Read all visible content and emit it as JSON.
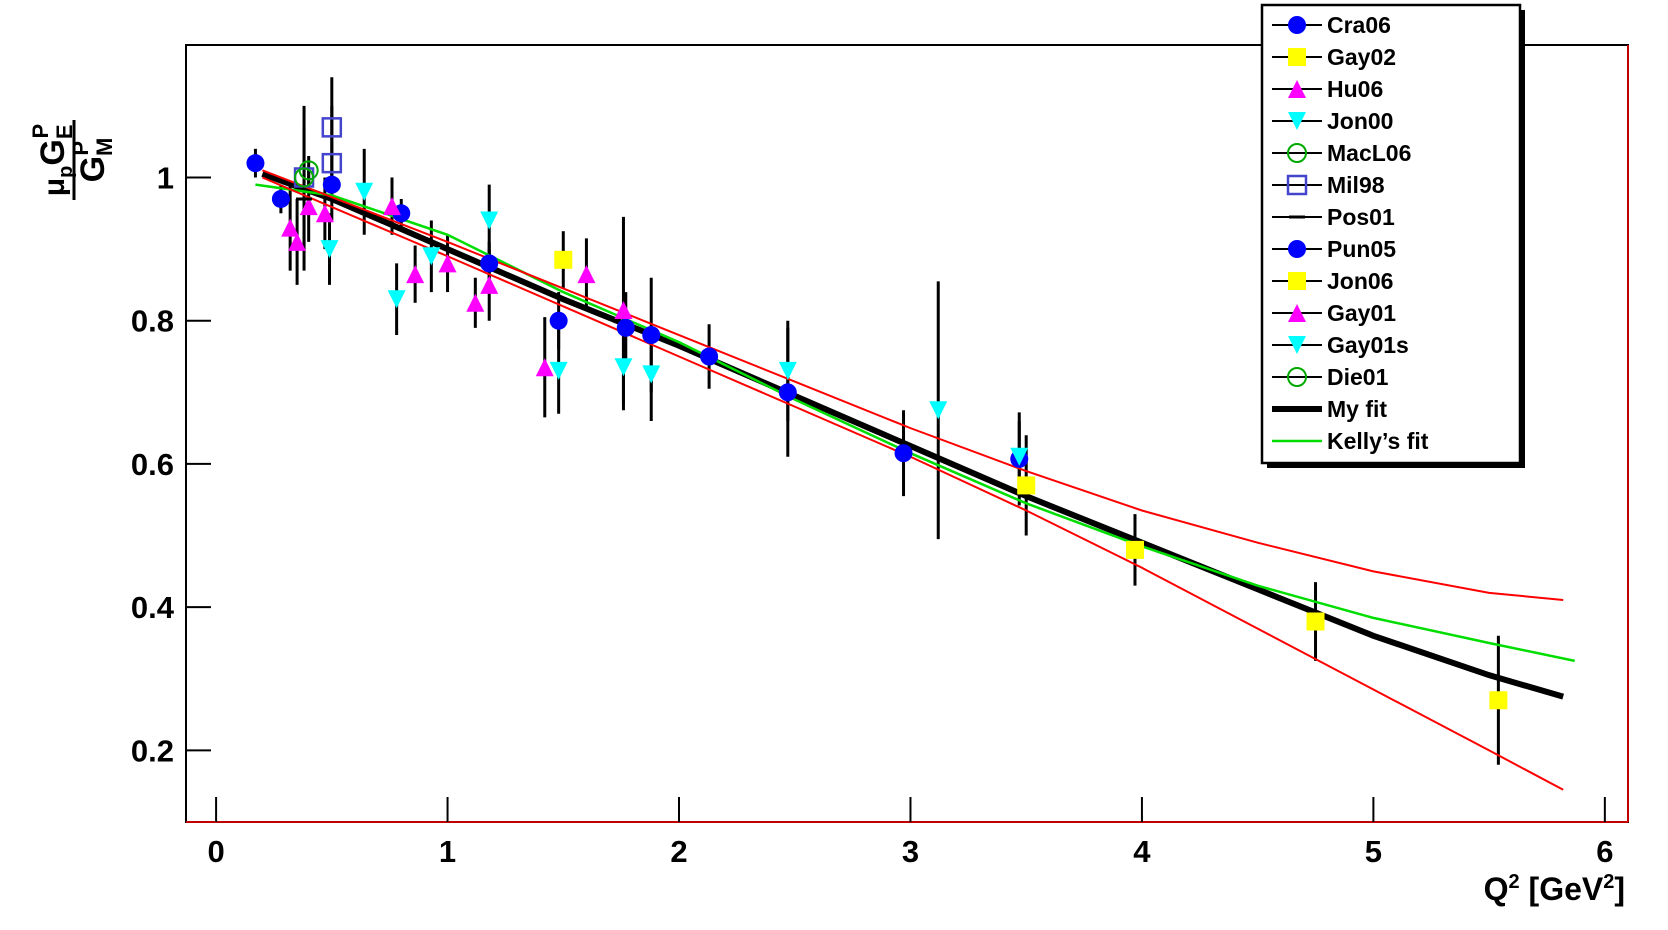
{
  "chart_data": {
    "type": "scatter",
    "y_label": {
      "mu": "μ",
      "mu_sub": "p",
      "num": "G",
      "num_sub": "E",
      "num_sup": "P",
      "den": "G",
      "den_sub": "M",
      "den_sup": "P"
    },
    "x_label": [
      "Q",
      "2",
      " [GeV",
      "2",
      "]"
    ],
    "xlim": [
      -0.13,
      6.1
    ],
    "ylim": [
      0.1,
      1.185
    ],
    "xticks": [
      0,
      1,
      2,
      3,
      4,
      5,
      6
    ],
    "yticks": [
      0.2,
      0.4,
      0.6,
      0.8,
      1
    ],
    "series": [
      {
        "name": "Cra06",
        "color": "#0000ff",
        "marker": "circle",
        "x": [
          0.17,
          0.28,
          0.5,
          0.8,
          1.18
        ],
        "values": [
          1.02,
          0.97,
          0.99,
          0.95,
          0.88
        ],
        "errors": [
          0.02,
          0.02,
          0.02,
          0.02,
          0.03
        ]
      },
      {
        "name": "Gay02",
        "color": "#ffff00",
        "marker": "square",
        "x": [
          3.5,
          3.97,
          4.75,
          5.54
        ],
        "values": [
          0.57,
          0.48,
          0.38,
          0.27
        ],
        "errors": [
          0.07,
          0.05,
          0.055,
          0.09
        ]
      },
      {
        "name": "Hu06",
        "color": "#ff00ff",
        "marker": "triangle-up",
        "x": [
          0.32,
          0.35,
          0.4,
          0.47
        ],
        "values": [
          0.93,
          0.91,
          0.96,
          0.95
        ],
        "errors": [
          0.06,
          0.06,
          0.05,
          0.05
        ]
      },
      {
        "name": "Jon00",
        "color": "#00ffff",
        "marker": "triangle-down",
        "x": [
          0.49,
          0.64,
          0.78,
          0.93,
          1.18,
          1.48,
          1.76,
          1.88
        ],
        "values": [
          0.9,
          0.98,
          0.83,
          0.89,
          0.94,
          0.73,
          0.735,
          0.725
        ],
        "errors": [
          0.05,
          0.06,
          0.05,
          0.05,
          0.05,
          0.06,
          0.06,
          0.065
        ]
      },
      {
        "name": "MacL06",
        "color": "#00aa00",
        "marker": "open-circle",
        "x": [
          0.4
        ],
        "values": [
          1.01
        ],
        "errors": [
          0.02
        ]
      },
      {
        "name": "Mil98",
        "color": "#4444cc",
        "marker": "open-square",
        "x": [
          0.38,
          0.5,
          0.5
        ],
        "values": [
          1.0,
          1.07,
          1.02
        ],
        "errors": [
          0.1,
          0.07,
          0.08
        ]
      },
      {
        "name": "Pos01",
        "color": "#000000",
        "marker": "dash",
        "x": [
          0.38
        ],
        "values": [
          0.97
        ],
        "errors": [
          0.1
        ]
      },
      {
        "name": "Pun05",
        "color": "#0000ff",
        "marker": "circle",
        "x": [
          1.48,
          1.77,
          1.88,
          2.13,
          2.47,
          2.97,
          3.47
        ],
        "values": [
          0.8,
          0.79,
          0.78,
          0.75,
          0.7,
          0.615,
          0.607
        ],
        "errors": [
          0.04,
          0.05,
          0.08,
          0.045,
          0.09,
          0.06,
          0.065
        ]
      },
      {
        "name": "Jon06",
        "color": "#ffff00",
        "marker": "square",
        "x": [
          1.5
        ],
        "values": [
          0.885
        ],
        "errors": [
          0.04
        ]
      },
      {
        "name": "Gay01",
        "color": "#ff00ff",
        "marker": "triangle-up",
        "x": [
          0.76,
          0.86,
          1.0,
          1.12,
          1.18,
          1.42,
          1.6,
          1.76
        ],
        "values": [
          0.96,
          0.865,
          0.88,
          0.825,
          0.85,
          0.735,
          0.865,
          0.815
        ],
        "errors": [
          0.04,
          0.04,
          0.04,
          0.035,
          0.05,
          0.07,
          0.05,
          0.13
        ]
      },
      {
        "name": "Gay01s",
        "color": "#00ffff",
        "marker": "triangle-down",
        "x": [
          2.47,
          3.12,
          3.47
        ],
        "values": [
          0.73,
          0.675,
          0.61
        ],
        "errors": [
          0.07,
          0.18,
          0.05
        ]
      },
      {
        "name": "Die01",
        "color": "#00aa00",
        "marker": "open-circle",
        "x": [
          0.38
        ],
        "values": [
          1.0
        ],
        "errors": [
          0.02
        ]
      },
      {
        "name": "My fit",
        "color": "#000000",
        "marker": "line",
        "width": 6,
        "x": [
          0.2,
          0.5,
          1,
          1.5,
          2,
          2.5,
          3,
          3.5,
          4,
          4.5,
          5,
          5.5,
          5.82
        ],
        "values": [
          1.005,
          0.97,
          0.9,
          0.83,
          0.765,
          0.695,
          0.625,
          0.555,
          0.49,
          0.425,
          0.36,
          0.305,
          0.275
        ]
      },
      {
        "name": "Kelly’s fit",
        "color": "#00dd00",
        "marker": "line",
        "width": 2.5,
        "x": [
          0.17,
          0.5,
          1,
          1.5,
          2,
          2.5,
          3,
          3.5,
          4,
          4.5,
          5,
          5.5,
          5.87
        ],
        "values": [
          0.99,
          0.975,
          0.92,
          0.84,
          0.77,
          0.69,
          0.615,
          0.545,
          0.485,
          0.43,
          0.385,
          0.35,
          0.325
        ]
      },
      {
        "color": "#ff0000",
        "marker": "line",
        "width": 2,
        "x": [
          0.2,
          1,
          2,
          3,
          3.5,
          4,
          4.5,
          5,
          5.5,
          5.82
        ],
        "values": [
          1.01,
          0.91,
          0.78,
          0.65,
          0.59,
          0.535,
          0.49,
          0.45,
          0.42,
          0.41
        ]
      },
      {
        "color": "#ff0000",
        "marker": "line",
        "width": 2,
        "x": [
          0.2,
          1,
          2,
          3,
          3.5,
          4,
          4.5,
          5,
          5.5,
          5.82
        ],
        "values": [
          1.0,
          0.89,
          0.75,
          0.61,
          0.535,
          0.455,
          0.37,
          0.285,
          0.2,
          0.145
        ]
      }
    ]
  }
}
